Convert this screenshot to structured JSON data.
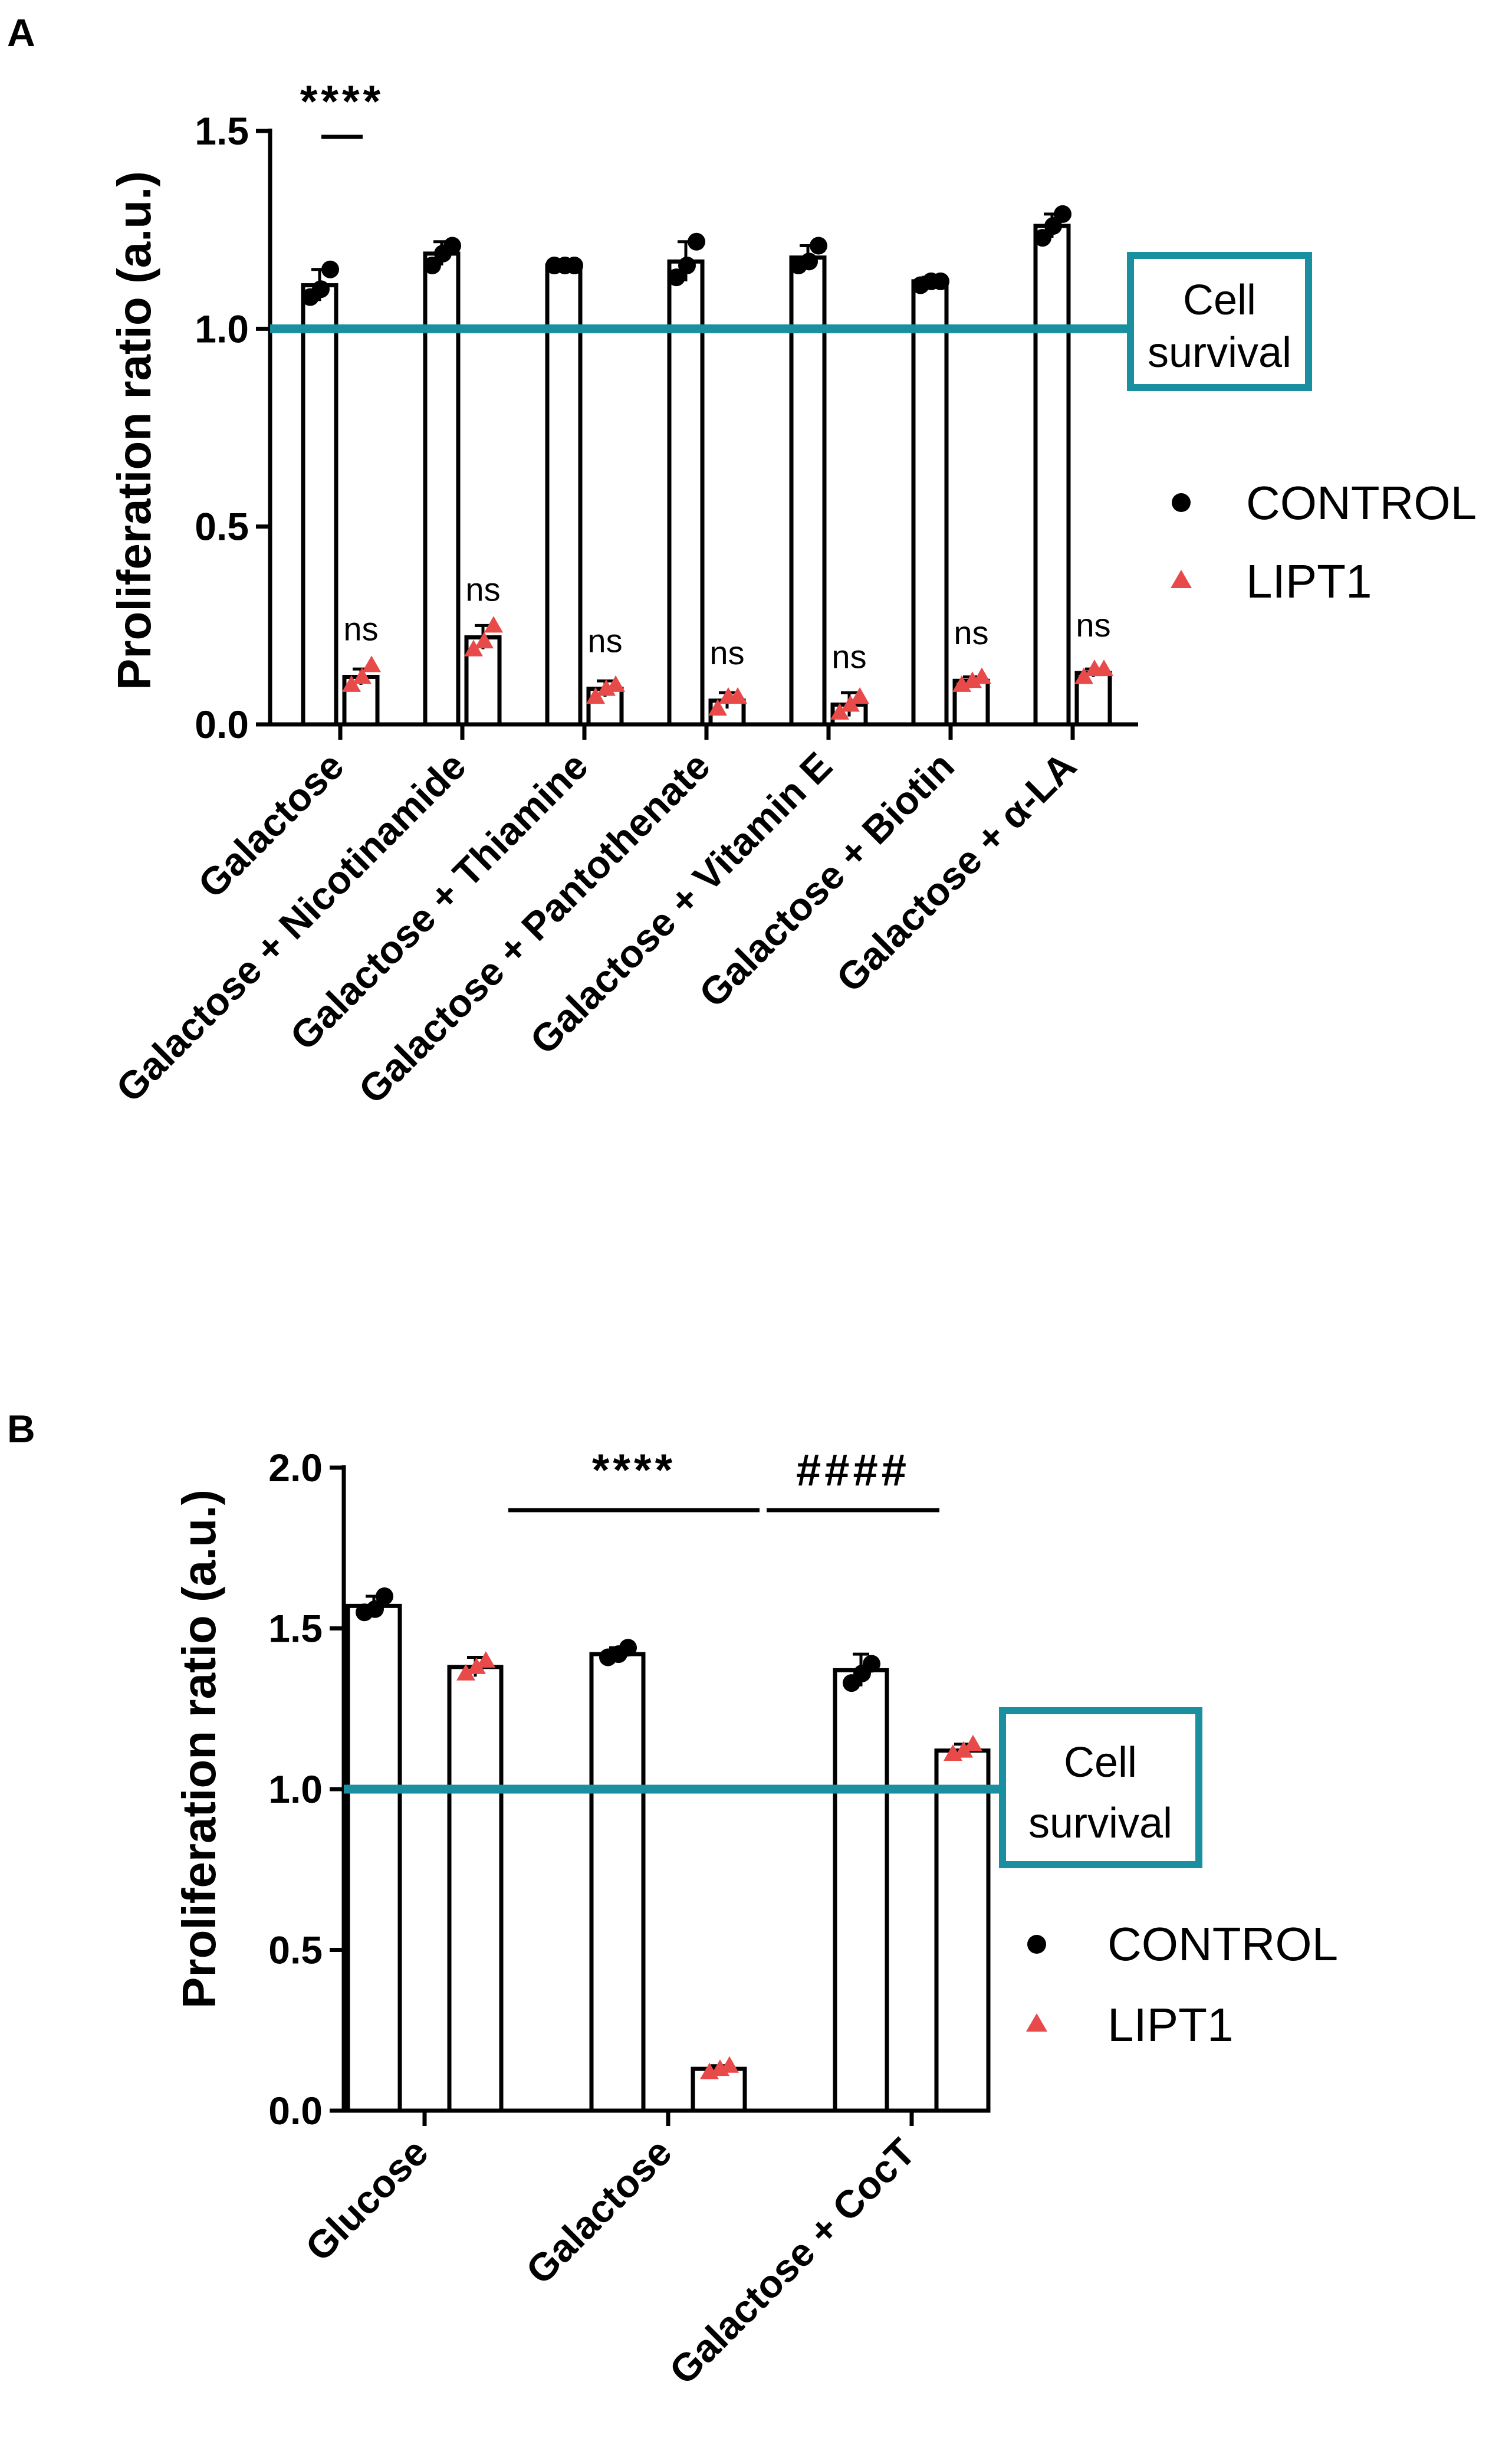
{
  "colors": {
    "control": "#000000",
    "lipt1": "#e84a4a",
    "reference_line": "#1a8fa0",
    "bar_fill": "#ffffff",
    "bar_stroke": "#000000"
  },
  "legend": {
    "control_label": "CONTROL",
    "lipt1_label": "LIPT1",
    "control_marker": "circle",
    "lipt1_marker": "triangle"
  },
  "chart_data": [
    {
      "panel": "A",
      "type": "bar",
      "ylabel": "Proliferation ratio (a.u.)",
      "ylim": [
        0,
        1.5
      ],
      "yticks": [
        "0.0",
        "0.5",
        "1.0",
        "1.5"
      ],
      "reference_line": 1.0,
      "reference_label_line1": "Cell",
      "reference_label_line2": "survival",
      "categories": [
        "Galactose",
        "Galactose + Nicotinamide",
        "Galactose + Thiamine",
        "Galactose + Pantothenate",
        "Galactose + Vitamin E",
        "Galactose + Biotin",
        "Galactose + α-LA"
      ],
      "series": [
        {
          "name": "CONTROL",
          "values": [
            1.11,
            1.19,
            1.16,
            1.17,
            1.18,
            1.12,
            1.26
          ],
          "errors": [
            0.04,
            0.03,
            0.01,
            0.05,
            0.03,
            0.01,
            0.03
          ],
          "points": [
            [
              1.08,
              1.1,
              1.15
            ],
            [
              1.16,
              1.19,
              1.21
            ],
            [
              1.16,
              1.16,
              1.16
            ],
            [
              1.13,
              1.16,
              1.22
            ],
            [
              1.16,
              1.17,
              1.21
            ],
            [
              1.11,
              1.12,
              1.12
            ],
            [
              1.23,
              1.26,
              1.29
            ]
          ]
        },
        {
          "name": "LIPT1",
          "values": [
            0.12,
            0.22,
            0.09,
            0.06,
            0.05,
            0.11,
            0.13
          ],
          "errors": [
            0.02,
            0.03,
            0.02,
            0.02,
            0.03,
            0.01,
            0.01
          ],
          "points": [
            [
              0.1,
              0.12,
              0.15
            ],
            [
              0.19,
              0.21,
              0.25
            ],
            [
              0.07,
              0.09,
              0.1
            ],
            [
              0.04,
              0.07,
              0.07
            ],
            [
              0.03,
              0.05,
              0.07
            ],
            [
              0.1,
              0.11,
              0.12
            ],
            [
              0.12,
              0.14,
              0.14
            ]
          ]
        }
      ],
      "annotations": [
        "ns",
        "ns",
        "ns",
        "ns",
        "ns",
        "ns",
        "ns"
      ],
      "significance": {
        "text": "****",
        "from_category": 0,
        "to_category": 0
      }
    },
    {
      "panel": "B",
      "type": "bar",
      "ylabel": "Proliferation ratio (a.u.)",
      "ylim": [
        0,
        2.0
      ],
      "yticks": [
        "0.0",
        "0.5",
        "1.0",
        "1.5",
        "2.0"
      ],
      "reference_line": 1.0,
      "reference_label_line1": "Cell",
      "reference_label_line2": "survival",
      "categories": [
        "Glucose",
        "Galactose",
        "Galactose + CocT"
      ],
      "series": [
        {
          "name": "CONTROL",
          "values": [
            1.57,
            1.42,
            1.37
          ],
          "errors": [
            0.03,
            0.02,
            0.05
          ],
          "points": [
            [
              1.55,
              1.56,
              1.6
            ],
            [
              1.41,
              1.42,
              1.44
            ],
            [
              1.33,
              1.36,
              1.39
            ]
          ]
        },
        {
          "name": "LIPT1",
          "values": [
            1.38,
            0.13,
            1.12
          ],
          "errors": [
            0.03,
            0.01,
            0.02
          ],
          "points": [
            [
              1.36,
              1.38,
              1.4
            ],
            [
              0.12,
              0.13,
              0.14
            ],
            [
              1.11,
              1.12,
              1.14
            ]
          ]
        }
      ],
      "significance": [
        {
          "text": "****",
          "from_category": 0,
          "to_category": 1
        },
        {
          "text": "####",
          "from_category": 1,
          "to_category": 2
        }
      ]
    }
  ]
}
